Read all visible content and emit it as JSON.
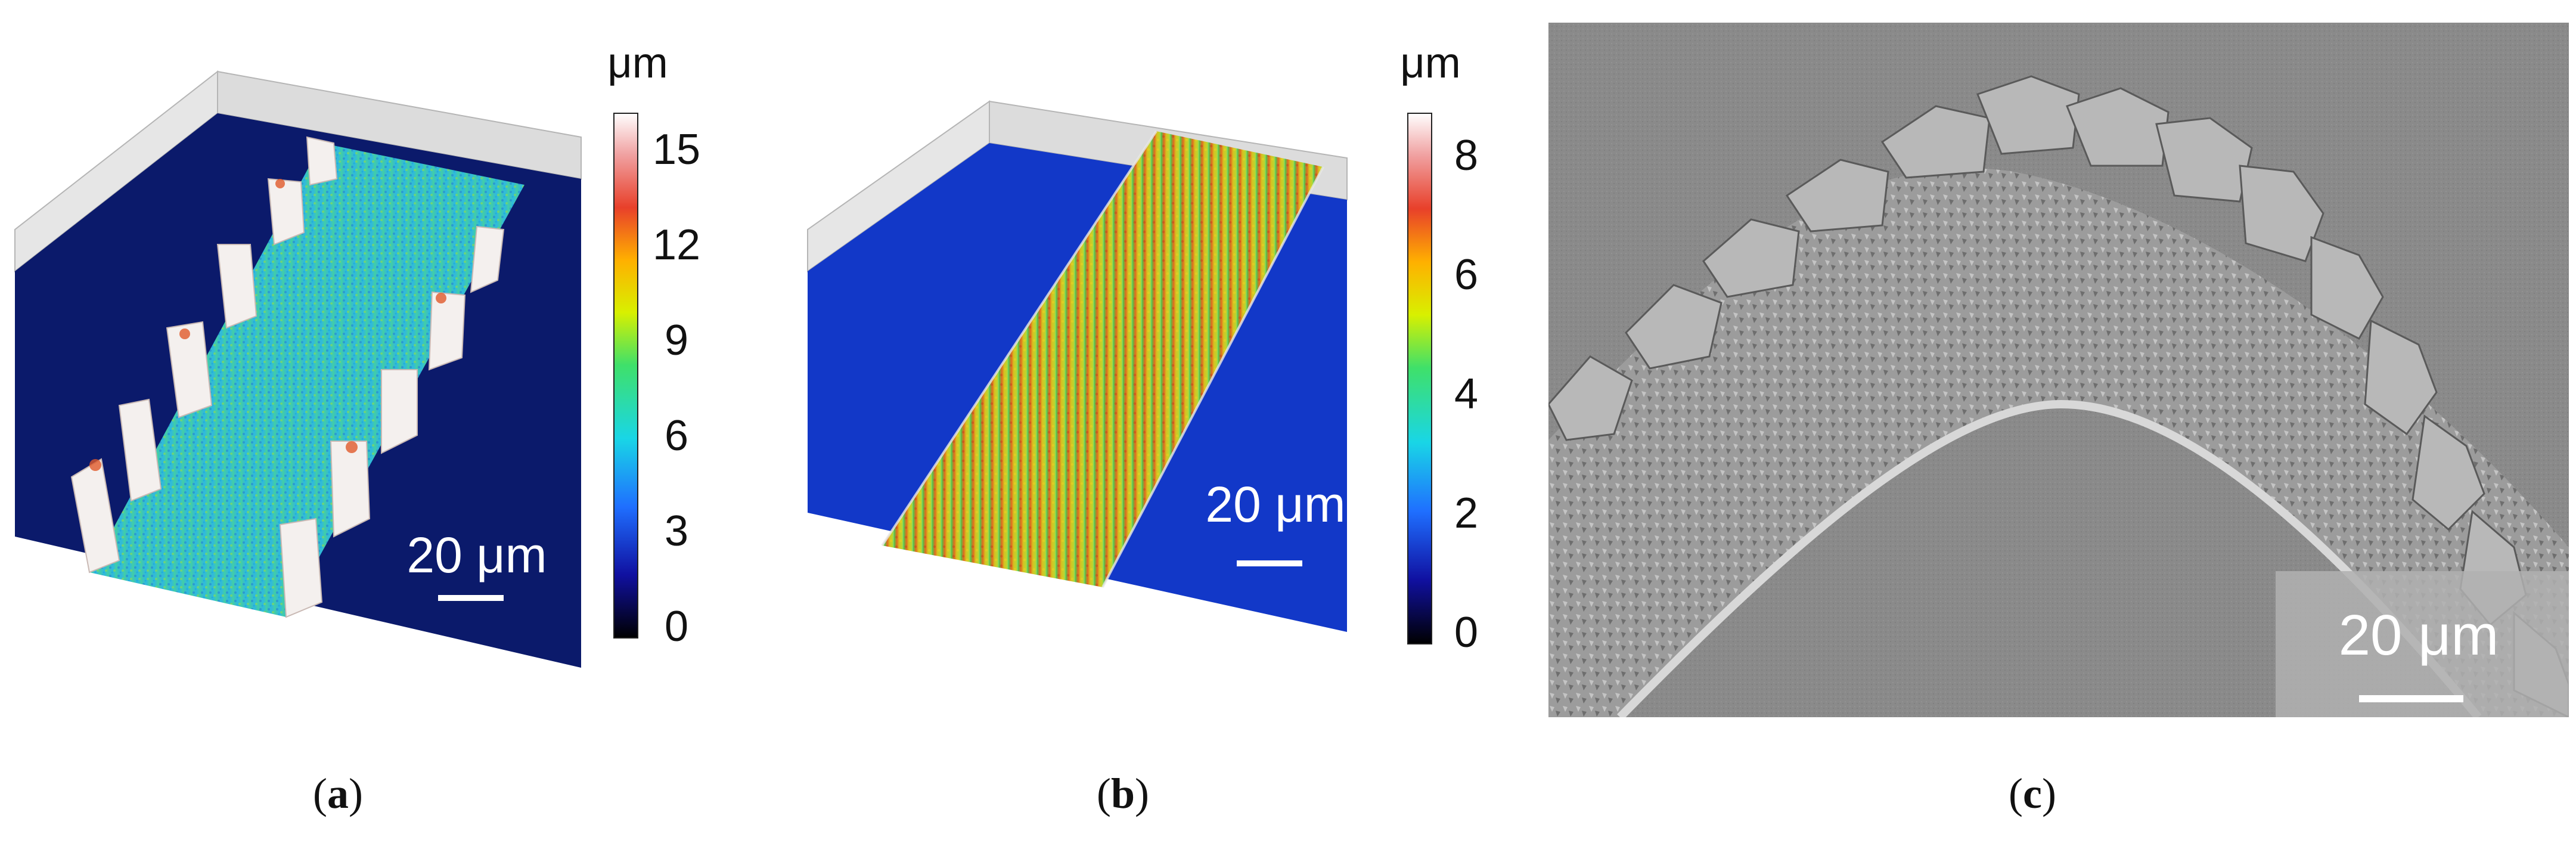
{
  "panels": [
    {
      "caption_letter": "a",
      "unit": "μm",
      "colorbar_ticks": [
        "15",
        "12",
        "9",
        "6",
        "3",
        "0"
      ],
      "scale_bar_label": "20 μm"
    },
    {
      "caption_letter": "b",
      "unit": "μm",
      "colorbar_ticks": [
        "8",
        "6",
        "4",
        "2",
        "0"
      ],
      "scale_bar_label": "20 μm"
    },
    {
      "caption_letter": "c",
      "scale_bar_label": "20 μm"
    }
  ],
  "colors": {
    "substrate_a": "#0b1a6b",
    "substrate_b": "#1238c8",
    "sem_background": "#8a8a8a"
  }
}
